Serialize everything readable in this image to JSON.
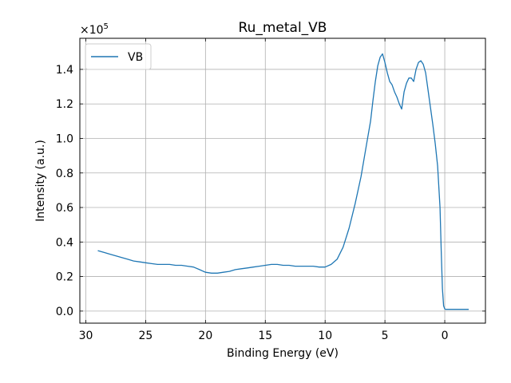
{
  "chart_data": {
    "type": "line",
    "title": "Ru_metal_VB",
    "xlabel": "Binding Energy (eV)",
    "ylabel": "Intensity (a.u.)",
    "y_multiplier_label": "×10",
    "y_multiplier_exponent": "5",
    "x_reversed": true,
    "xlim": [
      30.5,
      -3.4
    ],
    "ylim": [
      -0.07,
      1.58
    ],
    "x_ticks": [
      30,
      25,
      20,
      15,
      10,
      5,
      0
    ],
    "y_ticks": [
      0.0,
      0.2,
      0.4,
      0.6,
      0.8,
      1.0,
      1.2,
      1.4
    ],
    "y_tick_labels": [
      "0.0",
      "0.2",
      "0.4",
      "0.6",
      "0.8",
      "1.0",
      "1.2",
      "1.4"
    ],
    "grid": true,
    "legend_position": "upper-left",
    "color": "#1f77b4",
    "series": [
      {
        "name": "VB",
        "x": [
          29.0,
          28.5,
          28.0,
          27.5,
          27.0,
          26.5,
          26.0,
          25.5,
          25.0,
          24.5,
          24.0,
          23.5,
          23.0,
          22.5,
          22.0,
          21.5,
          21.0,
          20.5,
          20.0,
          19.5,
          19.0,
          18.5,
          18.0,
          17.5,
          17.0,
          16.5,
          16.0,
          15.5,
          15.0,
          14.5,
          14.0,
          13.5,
          13.0,
          12.5,
          12.0,
          11.5,
          11.0,
          10.5,
          10.0,
          9.5,
          9.0,
          8.5,
          8.0,
          7.5,
          7.0,
          6.5,
          6.2,
          6.0,
          5.8,
          5.6,
          5.4,
          5.2,
          5.0,
          4.8,
          4.6,
          4.4,
          4.2,
          4.0,
          3.8,
          3.6,
          3.4,
          3.2,
          3.0,
          2.8,
          2.6,
          2.4,
          2.2,
          2.0,
          1.8,
          1.6,
          1.4,
          1.2,
          1.0,
          0.8,
          0.6,
          0.4,
          0.3,
          0.2,
          0.1,
          0.0,
          -0.1,
          -0.5,
          -1.0,
          -1.5,
          -2.0
        ],
        "values": [
          0.35,
          0.34,
          0.33,
          0.32,
          0.31,
          0.3,
          0.29,
          0.285,
          0.28,
          0.275,
          0.27,
          0.27,
          0.27,
          0.265,
          0.265,
          0.26,
          0.255,
          0.24,
          0.225,
          0.22,
          0.22,
          0.225,
          0.23,
          0.24,
          0.245,
          0.25,
          0.255,
          0.26,
          0.265,
          0.27,
          0.27,
          0.265,
          0.265,
          0.26,
          0.26,
          0.26,
          0.26,
          0.255,
          0.255,
          0.27,
          0.3,
          0.37,
          0.48,
          0.62,
          0.78,
          0.98,
          1.1,
          1.22,
          1.33,
          1.42,
          1.47,
          1.49,
          1.44,
          1.38,
          1.33,
          1.31,
          1.27,
          1.24,
          1.2,
          1.17,
          1.27,
          1.32,
          1.35,
          1.35,
          1.33,
          1.4,
          1.44,
          1.45,
          1.43,
          1.38,
          1.28,
          1.18,
          1.08,
          0.97,
          0.84,
          0.6,
          0.35,
          0.13,
          0.03,
          0.012,
          0.01,
          0.01,
          0.01,
          0.01,
          0.01
        ]
      }
    ]
  }
}
